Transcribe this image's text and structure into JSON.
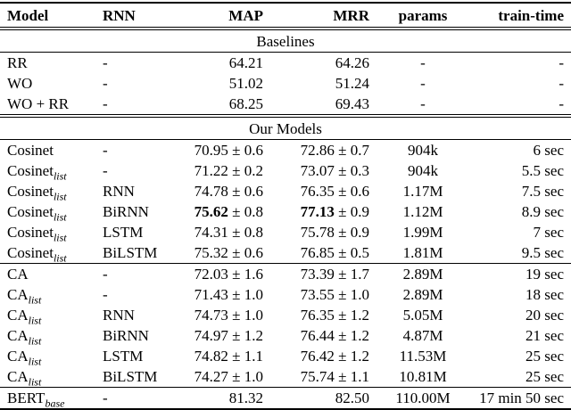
{
  "table": {
    "columns": [
      "Model",
      "RNN",
      "MAP",
      "MRR",
      "params",
      "train-time"
    ],
    "sections": [
      {
        "title": "Baselines",
        "groups": [
          {
            "rows": [
              {
                "model": "RR",
                "sub": "",
                "rnn": "-",
                "map": "64.21",
                "map_pm": "",
                "map_bold": false,
                "mrr": "64.26",
                "mrr_pm": "",
                "mrr_bold": false,
                "params": "-",
                "time": "-"
              },
              {
                "model": "WO",
                "sub": "",
                "rnn": "-",
                "map": "51.02",
                "map_pm": "",
                "map_bold": false,
                "mrr": "51.24",
                "mrr_pm": "",
                "mrr_bold": false,
                "params": "-",
                "time": "-"
              },
              {
                "model": "WO + RR",
                "sub": "",
                "rnn": "-",
                "map": "68.25",
                "map_pm": "",
                "map_bold": false,
                "mrr": "69.43",
                "mrr_pm": "",
                "mrr_bold": false,
                "params": "-",
                "time": "-"
              }
            ]
          }
        ]
      },
      {
        "title": "Our Models",
        "groups": [
          {
            "rows": [
              {
                "model": "Cosinet",
                "sub": "",
                "rnn": "-",
                "map": "70.95",
                "map_pm": "± 0.6",
                "map_bold": false,
                "mrr": "72.86",
                "mrr_pm": "± 0.7",
                "mrr_bold": false,
                "params": "904k",
                "time": "6 sec"
              },
              {
                "model": "Cosinet",
                "sub": "list",
                "rnn": "-",
                "map": "71.22",
                "map_pm": "± 0.2",
                "map_bold": false,
                "mrr": "73.07",
                "mrr_pm": "± 0.3",
                "mrr_bold": false,
                "params": "904k",
                "time": "5.5 sec"
              },
              {
                "model": "Cosinet",
                "sub": "list",
                "rnn": "RNN",
                "map": "74.78",
                "map_pm": "± 0.6",
                "map_bold": false,
                "mrr": "76.35",
                "mrr_pm": "± 0.6",
                "mrr_bold": false,
                "params": "1.17M",
                "time": "7.5 sec"
              },
              {
                "model": "Cosinet",
                "sub": "list",
                "rnn": "BiRNN",
                "map": "75.62",
                "map_pm": "± 0.8",
                "map_bold": true,
                "mrr": "77.13",
                "mrr_pm": "± 0.9",
                "mrr_bold": true,
                "params": "1.12M",
                "time": "8.9 sec"
              },
              {
                "model": "Cosinet",
                "sub": "list",
                "rnn": "LSTM",
                "map": "74.31",
                "map_pm": "± 0.8",
                "map_bold": false,
                "mrr": "75.78",
                "mrr_pm": "± 0.9",
                "mrr_bold": false,
                "params": "1.99M",
                "time": "7 sec"
              },
              {
                "model": "Cosinet",
                "sub": "list",
                "rnn": "BiLSTM",
                "map": "75.32",
                "map_pm": "± 0.6",
                "map_bold": false,
                "mrr": "76.85",
                "mrr_pm": "± 0.5",
                "mrr_bold": false,
                "params": "1.81M",
                "time": "9.5 sec"
              }
            ]
          },
          {
            "rows": [
              {
                "model": "CA",
                "sub": "",
                "rnn": "-",
                "map": "72.03",
                "map_pm": "± 1.6",
                "map_bold": false,
                "mrr": "73.39",
                "mrr_pm": "± 1.7",
                "mrr_bold": false,
                "params": "2.89M",
                "time": "19 sec"
              },
              {
                "model": "CA",
                "sub": "list",
                "rnn": "-",
                "map": "71.43",
                "map_pm": "± 1.0",
                "map_bold": false,
                "mrr": "73.55",
                "mrr_pm": "± 1.0",
                "mrr_bold": false,
                "params": "2.89M",
                "time": "18 sec"
              },
              {
                "model": "CA",
                "sub": "list",
                "rnn": "RNN",
                "map": "74.73",
                "map_pm": "± 1.0",
                "map_bold": false,
                "mrr": "76.35",
                "mrr_pm": "± 1.2",
                "mrr_bold": false,
                "params": "5.05M",
                "time": "20 sec"
              },
              {
                "model": "CA",
                "sub": "list",
                "rnn": "BiRNN",
                "map": "74.97",
                "map_pm": "± 1.2",
                "map_bold": false,
                "mrr": "76.44",
                "mrr_pm": "± 1.2",
                "mrr_bold": false,
                "params": "4.87M",
                "time": "21 sec"
              },
              {
                "model": "CA",
                "sub": "list",
                "rnn": "LSTM",
                "map": "74.82",
                "map_pm": "± 1.1",
                "map_bold": false,
                "mrr": "76.42",
                "mrr_pm": "± 1.2",
                "mrr_bold": false,
                "params": "11.53M",
                "time": "25 sec"
              },
              {
                "model": "CA",
                "sub": "list",
                "rnn": "BiLSTM",
                "map": "74.27",
                "map_pm": "± 1.0",
                "map_bold": false,
                "mrr": "75.74",
                "mrr_pm": "± 1.1",
                "mrr_bold": false,
                "params": "10.81M",
                "time": "25 sec"
              }
            ]
          },
          {
            "rows": [
              {
                "model": "BERT",
                "sub": "base",
                "rnn": "-",
                "map": "81.32",
                "map_pm": "",
                "map_bold": false,
                "mrr": "82.50",
                "mrr_pm": "",
                "mrr_bold": false,
                "params": "110.00M",
                "time": "17 min 50 sec"
              }
            ]
          }
        ]
      }
    ]
  }
}
